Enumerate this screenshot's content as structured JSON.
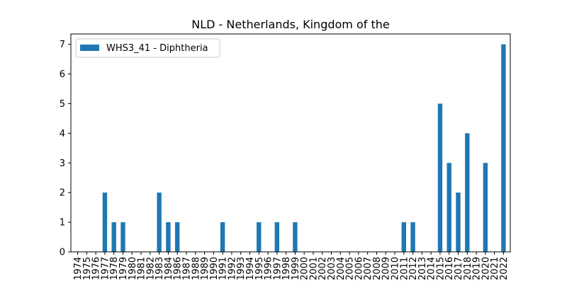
{
  "chart_data": {
    "type": "bar",
    "title": "NLD - Netherlands, Kingdom of the",
    "xlabel": "",
    "ylabel": "",
    "ylim": [
      0,
      7.35
    ],
    "yticks": [
      0,
      1,
      2,
      3,
      4,
      5,
      6,
      7
    ],
    "legend": "top-left",
    "grid": false,
    "categories": [
      "1974",
      "1975",
      "1976",
      "1977",
      "1978",
      "1979",
      "1980",
      "1981",
      "1982",
      "1983",
      "1984",
      "1986",
      "1987",
      "1988",
      "1989",
      "1990",
      "1991",
      "1992",
      "1993",
      "1994",
      "1995",
      "1996",
      "1997",
      "1998",
      "1999",
      "2000",
      "2001",
      "2002",
      "2003",
      "2004",
      "2005",
      "2006",
      "2007",
      "2008",
      "2009",
      "2010",
      "2011",
      "2012",
      "2013",
      "2014",
      "2015",
      "2016",
      "2017",
      "2018",
      "2019",
      "2020",
      "2021",
      "2022"
    ],
    "series": [
      {
        "name": "WHS3_41 - Diphtheria",
        "color": "#1f77b4",
        "values": [
          0,
          0,
          0,
          2,
          1,
          1,
          0,
          0,
          0,
          2,
          1,
          1,
          0,
          0,
          0,
          0,
          1,
          0,
          0,
          0,
          1,
          0,
          1,
          0,
          1,
          0,
          0,
          0,
          0,
          0,
          0,
          0,
          0,
          0,
          0,
          0,
          1,
          1,
          0,
          0,
          5,
          3,
          2,
          4,
          0,
          3,
          0,
          7
        ]
      }
    ]
  }
}
